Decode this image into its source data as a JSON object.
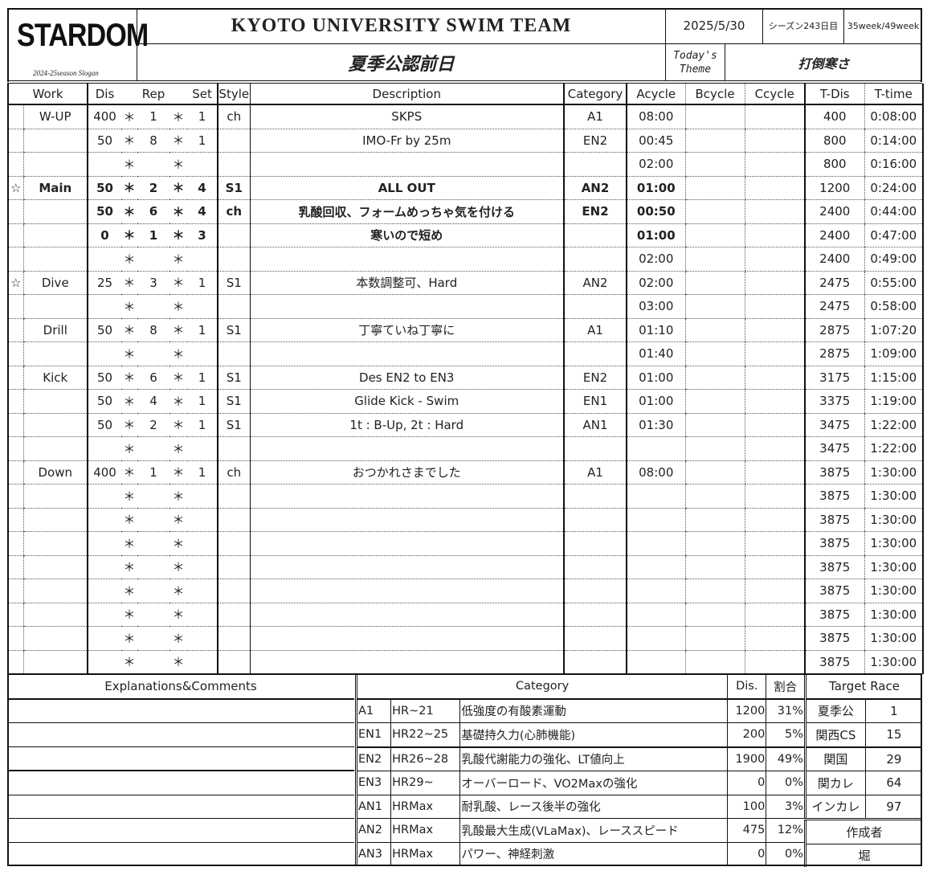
{
  "header": {
    "logo": "STARDOM",
    "slogan": "2024-25season Slogan",
    "title": "KYOTO UNIVERSITY SWIM TEAM",
    "subtitle": "夏季公認前日",
    "date": "2025/5/30",
    "season_day": "シーズン243日目",
    "week": "35week/49week",
    "theme_label_1": "Today's",
    "theme_label_2": "Theme",
    "theme": "打倒寒さ"
  },
  "columns": [
    "Work",
    "Dis",
    "Rep",
    "Set",
    "Style",
    "Description",
    "Category",
    "Acycle",
    "Bcycle",
    "Ccycle",
    "T-Dis",
    "T-time"
  ],
  "rows": [
    {
      "star": "",
      "work": "W-UP",
      "dis": "400",
      "rep": "1",
      "set": "1",
      "style": "ch",
      "desc": "SKPS",
      "cat": "A1",
      "acycle": "08:00",
      "tdis": "400",
      "ttime": "0:08:00",
      "bold": false
    },
    {
      "star": "",
      "work": "",
      "dis": "50",
      "rep": "8",
      "set": "1",
      "style": "",
      "desc": "IMO-Fr by 25m",
      "cat": "EN2",
      "acycle": "00:45",
      "tdis": "800",
      "ttime": "0:14:00",
      "bold": false
    },
    {
      "star": "",
      "work": "",
      "dis": "",
      "rep": "",
      "set": "",
      "style": "",
      "desc": "",
      "cat": "",
      "acycle": "02:00",
      "tdis": "800",
      "ttime": "0:16:00",
      "bold": false
    },
    {
      "star": "☆",
      "work": "Main",
      "dis": "50",
      "rep": "2",
      "set": "4",
      "style": "S1",
      "desc": "ALL OUT",
      "cat": "AN2",
      "acycle": "01:00",
      "tdis": "1200",
      "ttime": "0:24:00",
      "bold": true
    },
    {
      "star": "",
      "work": "",
      "dis": "50",
      "rep": "6",
      "set": "4",
      "style": "ch",
      "desc": "乳酸回収、フォームめっちゃ気を付ける",
      "cat": "EN2",
      "acycle": "00:50",
      "tdis": "2400",
      "ttime": "0:44:00",
      "bold": true
    },
    {
      "star": "",
      "work": "",
      "dis": "0",
      "rep": "1",
      "set": "3",
      "style": "",
      "desc": "寒いので短め",
      "cat": "",
      "acycle": "01:00",
      "tdis": "2400",
      "ttime": "0:47:00",
      "bold": true
    },
    {
      "star": "",
      "work": "",
      "dis": "",
      "rep": "",
      "set": "",
      "style": "",
      "desc": "",
      "cat": "",
      "acycle": "02:00",
      "tdis": "2400",
      "ttime": "0:49:00",
      "bold": false
    },
    {
      "star": "☆",
      "work": "Dive",
      "dis": "25",
      "rep": "3",
      "set": "1",
      "style": "S1",
      "desc": "本数調整可、Hard",
      "cat": "AN2",
      "acycle": "02:00",
      "tdis": "2475",
      "ttime": "0:55:00",
      "bold": false
    },
    {
      "star": "",
      "work": "",
      "dis": "",
      "rep": "",
      "set": "",
      "style": "",
      "desc": "",
      "cat": "",
      "acycle": "03:00",
      "tdis": "2475",
      "ttime": "0:58:00",
      "bold": false
    },
    {
      "star": "",
      "work": "Drill",
      "dis": "50",
      "rep": "8",
      "set": "1",
      "style": "S1",
      "desc": "丁寧ていね丁寧に",
      "cat": "A1",
      "acycle": "01:10",
      "tdis": "2875",
      "ttime": "1:07:20",
      "bold": false
    },
    {
      "star": "",
      "work": "",
      "dis": "",
      "rep": "",
      "set": "",
      "style": "",
      "desc": "",
      "cat": "",
      "acycle": "01:40",
      "tdis": "2875",
      "ttime": "1:09:00",
      "bold": false
    },
    {
      "star": "",
      "work": "Kick",
      "dis": "50",
      "rep": "6",
      "set": "1",
      "style": "S1",
      "desc": "Des EN2 to EN3",
      "cat": "EN2",
      "acycle": "01:00",
      "tdis": "3175",
      "ttime": "1:15:00",
      "bold": false
    },
    {
      "star": "",
      "work": "",
      "dis": "50",
      "rep": "4",
      "set": "1",
      "style": "S1",
      "desc": "Glide Kick - Swim",
      "cat": "EN1",
      "acycle": "01:00",
      "tdis": "3375",
      "ttime": "1:19:00",
      "bold": false
    },
    {
      "star": "",
      "work": "",
      "dis": "50",
      "rep": "2",
      "set": "1",
      "style": "S1",
      "desc": "1t : B-Up, 2t : Hard",
      "cat": "AN1",
      "acycle": "01:30",
      "tdis": "3475",
      "ttime": "1:22:00",
      "bold": false
    },
    {
      "star": "",
      "work": "",
      "dis": "",
      "rep": "",
      "set": "",
      "style": "",
      "desc": "",
      "cat": "",
      "acycle": "",
      "tdis": "3475",
      "ttime": "1:22:00",
      "bold": false
    },
    {
      "star": "",
      "work": "Down",
      "dis": "400",
      "rep": "1",
      "set": "1",
      "style": "ch",
      "desc": "おつかれさまでした",
      "cat": "A1",
      "acycle": "08:00",
      "tdis": "3875",
      "ttime": "1:30:00",
      "bold": false
    },
    {
      "star": "",
      "work": "",
      "dis": "",
      "rep": "",
      "set": "",
      "style": "",
      "desc": "",
      "cat": "",
      "acycle": "",
      "tdis": "3875",
      "ttime": "1:30:00",
      "bold": false
    },
    {
      "star": "",
      "work": "",
      "dis": "",
      "rep": "",
      "set": "",
      "style": "",
      "desc": "",
      "cat": "",
      "acycle": "",
      "tdis": "3875",
      "ttime": "1:30:00",
      "bold": false
    },
    {
      "star": "",
      "work": "",
      "dis": "",
      "rep": "",
      "set": "",
      "style": "",
      "desc": "",
      "cat": "",
      "acycle": "",
      "tdis": "3875",
      "ttime": "1:30:00",
      "bold": false
    },
    {
      "star": "",
      "work": "",
      "dis": "",
      "rep": "",
      "set": "",
      "style": "",
      "desc": "",
      "cat": "",
      "acycle": "",
      "tdis": "3875",
      "ttime": "1:30:00",
      "bold": false
    },
    {
      "star": "",
      "work": "",
      "dis": "",
      "rep": "",
      "set": "",
      "style": "",
      "desc": "",
      "cat": "",
      "acycle": "",
      "tdis": "3875",
      "ttime": "1:30:00",
      "bold": false
    },
    {
      "star": "",
      "work": "",
      "dis": "",
      "rep": "",
      "set": "",
      "style": "",
      "desc": "",
      "cat": "",
      "acycle": "",
      "tdis": "3875",
      "ttime": "1:30:00",
      "bold": false
    },
    {
      "star": "",
      "work": "",
      "dis": "",
      "rep": "",
      "set": "",
      "style": "",
      "desc": "",
      "cat": "",
      "acycle": "",
      "tdis": "3875",
      "ttime": "1:30:00",
      "bold": false
    },
    {
      "star": "",
      "work": "",
      "dis": "",
      "rep": "",
      "set": "",
      "style": "",
      "desc": "",
      "cat": "",
      "acycle": "",
      "tdis": "3875",
      "ttime": "1:30:00",
      "bold": false
    }
  ],
  "multiply_sign": "＊",
  "explanations": {
    "title": "Explanations&Comments"
  },
  "category_table": {
    "title": "Category",
    "dis_label": "Dis.",
    "ratio_label": "割合",
    "rows": [
      {
        "code": "A1",
        "hr": "HR~21",
        "desc": "低強度の有酸素運動",
        "dis": "1200",
        "ratio": "31%"
      },
      {
        "code": "EN1",
        "hr": "HR22~25",
        "desc": "基礎持久力(心肺機能)",
        "dis": "200",
        "ratio": "5%"
      },
      {
        "code": "EN2",
        "hr": "HR26~28",
        "desc": "乳酸代謝能力の強化、LT値向上",
        "dis": "1900",
        "ratio": "49%"
      },
      {
        "code": "EN3",
        "hr": "HR29~",
        "desc": "オーバーロード、VO2Maxの強化",
        "dis": "0",
        "ratio": "0%"
      },
      {
        "code": "AN1",
        "hr": "HRMax",
        "desc": "耐乳酸、レース後半の強化",
        "dis": "100",
        "ratio": "3%"
      },
      {
        "code": "AN2",
        "hr": "HRMax",
        "desc": "乳酸最大生成(VLaMax)、レーススピード",
        "dis": "475",
        "ratio": "12%"
      },
      {
        "code": "AN3",
        "hr": "HRMax",
        "desc": "パワー、神経刺激",
        "dis": "0",
        "ratio": "0%"
      }
    ]
  },
  "target_race": {
    "title": "Target Race",
    "races": [
      {
        "name": "夏季公",
        "days": "1"
      },
      {
        "name": "関西CS",
        "days": "15"
      },
      {
        "name": "関国",
        "days": "29"
      },
      {
        "name": "関カレ",
        "days": "64"
      },
      {
        "name": "インカレ",
        "days": "97"
      }
    ],
    "author_label": "作成者",
    "author": "堀"
  }
}
